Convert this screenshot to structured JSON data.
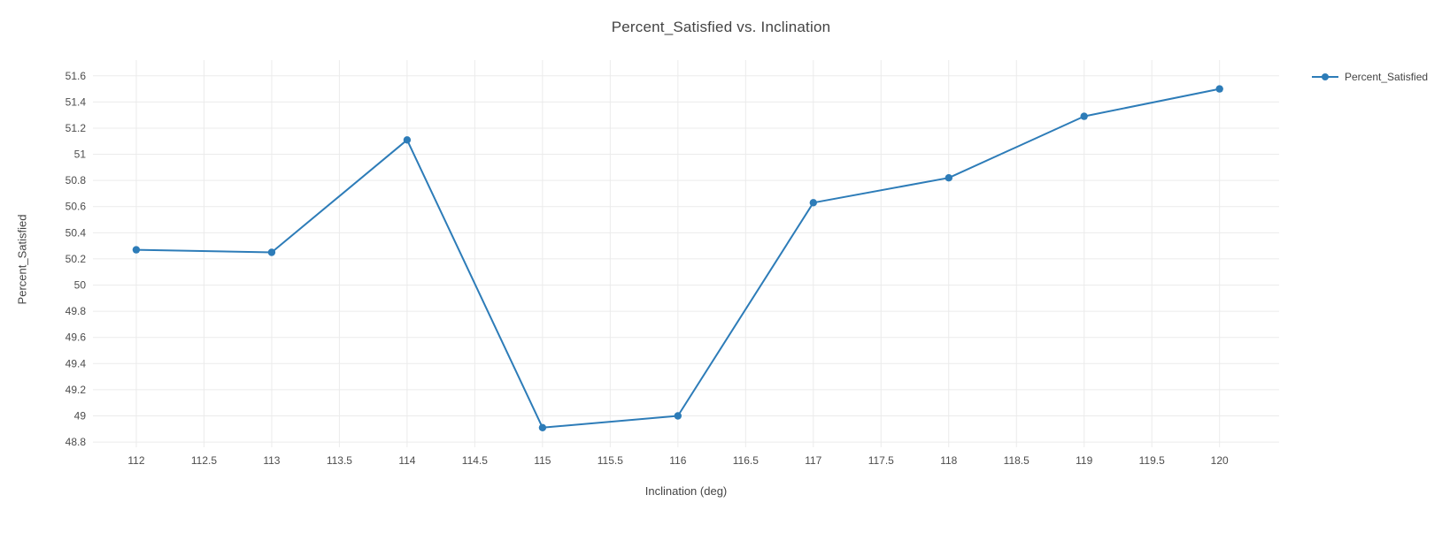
{
  "title": "Percent_Satisfied vs. Inclination",
  "colors": {
    "line": "#2d7cb8",
    "grid": "#ebebeb",
    "text": "#444444",
    "tick_text": "#4c4c4c",
    "background": "#ffffff"
  },
  "legend": {
    "items": [
      {
        "label": "Percent_Satisfied"
      }
    ]
  },
  "chart_data": {
    "type": "line",
    "title": "Percent_Satisfied vs. Inclination",
    "xlabel": "Inclination (deg)",
    "ylabel": "Percent_Satisfied",
    "legend_entries": [
      "Percent_Satisfied"
    ],
    "legend_position": "right",
    "grid": true,
    "x": [
      112,
      113,
      114,
      115,
      116,
      117,
      118,
      119,
      120
    ],
    "series": [
      {
        "name": "Percent_Satisfied",
        "values": [
          50.27,
          50.25,
          51.11,
          48.91,
          49.0,
          50.63,
          50.82,
          51.29,
          51.5
        ]
      }
    ],
    "xticks": [
      112,
      112.5,
      113,
      113.5,
      114,
      114.5,
      115,
      115.5,
      116,
      116.5,
      117,
      117.5,
      118,
      118.5,
      119,
      119.5,
      120
    ],
    "yticks": [
      48.8,
      49,
      49.2,
      49.4,
      49.6,
      49.8,
      50,
      50.2,
      50.4,
      50.6,
      50.8,
      51,
      51.2,
      51.4,
      51.6
    ],
    "xlim": [
      111.68,
      120.44
    ],
    "ylim": [
      48.76,
      51.72
    ]
  }
}
